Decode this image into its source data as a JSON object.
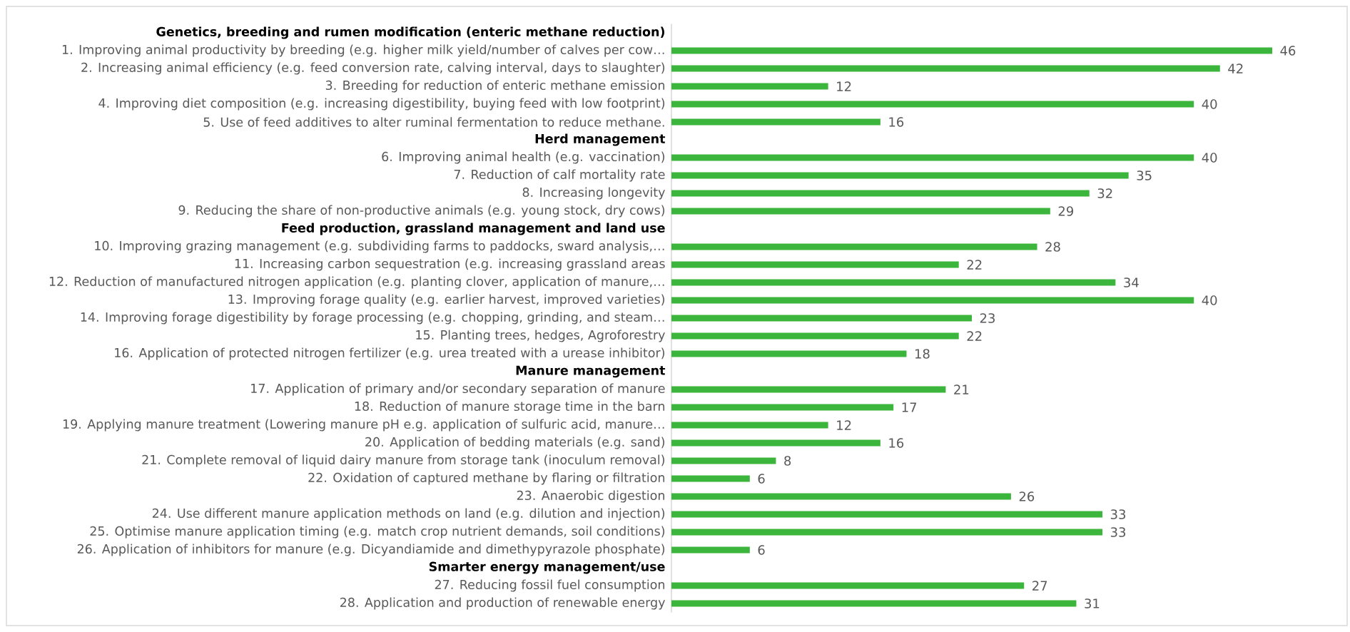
{
  "chart_data": {
    "type": "bar",
    "orientation": "horizontal",
    "categories": [
      "Genetics, breeding and rumen modification (enteric methane reduction)",
      "1. Improving animal productivity by breeding (e.g. higher milk yield/number of calves per cow…",
      "2. Increasing animal efficiency (e.g. feed conversion rate, calving interval, days to slaughter)",
      "3. Breeding for reduction of enteric methane emission",
      "4. Improving diet composition (e.g. increasing digestibility, buying feed with low footprint)",
      "5. Use of feed additives to alter ruminal fermentation to reduce methane.",
      "Herd management",
      "6. Improving animal health (e.g. vaccination)",
      "7. Reduction of calf mortality rate",
      "8. Increasing longevity",
      "9. Reducing the share of non-productive animals (e.g. young stock, dry cows)",
      "Feed production, grassland management and land use",
      "10. Improving grazing management (e.g. subdividing farms to paddocks, sward analysis,…",
      "11. Increasing carbon sequestration (e.g. increasing grassland areas",
      "12. Reduction of manufactured nitrogen application (e.g. planting clover, application of manure,…",
      "13. Improving forage quality (e.g. earlier harvest, improved varieties)",
      "14. Improving forage digestibility by forage processing (e.g. chopping, grinding, and steam…",
      "15. Planting trees, hedges, Agroforestry",
      "16. Application of protected nitrogen fertilizer (e.g. urea treated with a urease inhibitor)",
      "Manure management",
      "17. Application of primary and/or secondary separation of manure",
      "18. Reduction of manure storage time in the barn",
      "19. Applying manure treatment (Lowering manure pH e.g. application of sulfuric acid, manure…",
      "20. Application of bedding materials (e.g. sand)",
      "21. Complete removal of liquid dairy manure from storage tank (inoculum removal)",
      "22. Oxidation of captured methane by flaring or filtration",
      "23. Anaerobic digestion",
      "24. Use different manure application methods on land (e.g. dilution and injection)",
      "25. Optimise manure application timing (e.g. match crop nutrient demands, soil conditions)",
      "26. Application of inhibitors for manure (e.g. Dicyandiamide and dimethypyrazole phosphate)",
      "Smarter energy management/use",
      "27. Reducing fossil fuel consumption",
      "28. Application and production of renewable energy"
    ],
    "values": [
      null,
      46,
      42,
      12,
      40,
      16,
      null,
      40,
      35,
      32,
      29,
      null,
      28,
      22,
      34,
      40,
      23,
      22,
      18,
      null,
      21,
      17,
      12,
      16,
      8,
      6,
      26,
      33,
      33,
      6,
      null,
      27,
      31
    ],
    "color": "#3bb53b",
    "data_labels": true,
    "tick_labels": "y"
  }
}
